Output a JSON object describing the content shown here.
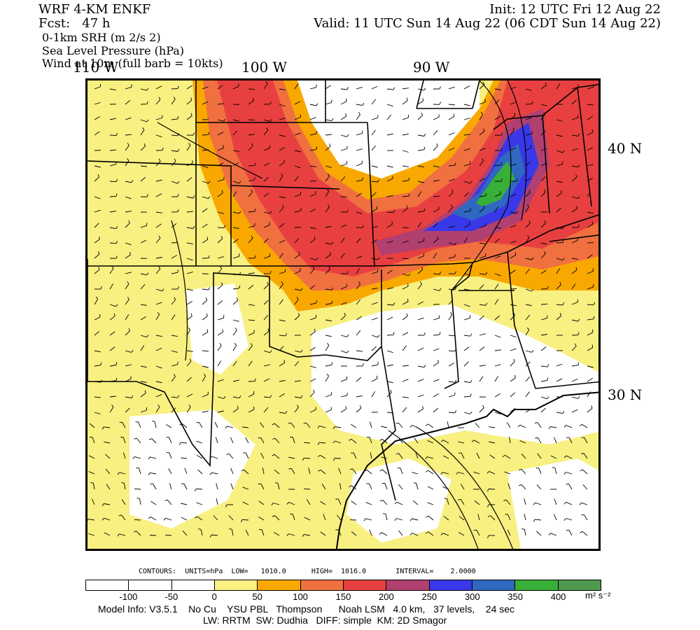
{
  "header": {
    "model": "WRF 4-KM ENKF",
    "fcst": "Fcst:   47 h",
    "field1": "0-1km SRH (m 2/s 2)",
    "field2": "Sea Level Pressure (hPa)",
    "field3": "Wind at 10m (full barb = 10kts)",
    "init": "Init: 12 UTC Fri 12 Aug 22",
    "valid": "Valid: 11 UTC Sun 14 Aug 22 (06 CDT Sun 14 Aug 22)"
  },
  "map": {
    "lon_labels": [
      "110 W",
      "100 W",
      "90 W"
    ],
    "lat_labels": [
      "40 N",
      "30 N"
    ],
    "srh_bands": [
      {
        "color": "#f8f080"
      },
      {
        "color": "#f8a800"
      },
      {
        "color": "#f07040"
      },
      {
        "color": "#e84040"
      },
      {
        "color": "#b04070"
      },
      {
        "color": "#3838e8"
      },
      {
        "color": "#3068c0"
      },
      {
        "color": "#38b038"
      }
    ]
  },
  "contours_info": "CONTOURS:  UNITS=hPa  LOW=   1010.0      HIGH=  1016.0       INTERVAL=    2.0000",
  "colorbar": {
    "colors": [
      "#ffffff",
      "#ffffff",
      "#ffffff",
      "#f8f080",
      "#f8a800",
      "#f07040",
      "#e84040",
      "#b04070",
      "#3838e8",
      "#3068c0",
      "#38b038",
      "#509850"
    ],
    "ticks": [
      "-100",
      "-50",
      "0",
      "50",
      "100",
      "150",
      "200",
      "250",
      "300",
      "350",
      "400"
    ],
    "units": "m² s⁻²"
  },
  "footer": {
    "line1": "Model Info: V3.5.1    No Cu    YSU PBL   Thompson      Noah LSM   4.0 km,   37 levels,    24 sec",
    "line2": "LW: RRTM  SW: Dudhia   DIFF: simple  KM: 2D Smagor"
  }
}
